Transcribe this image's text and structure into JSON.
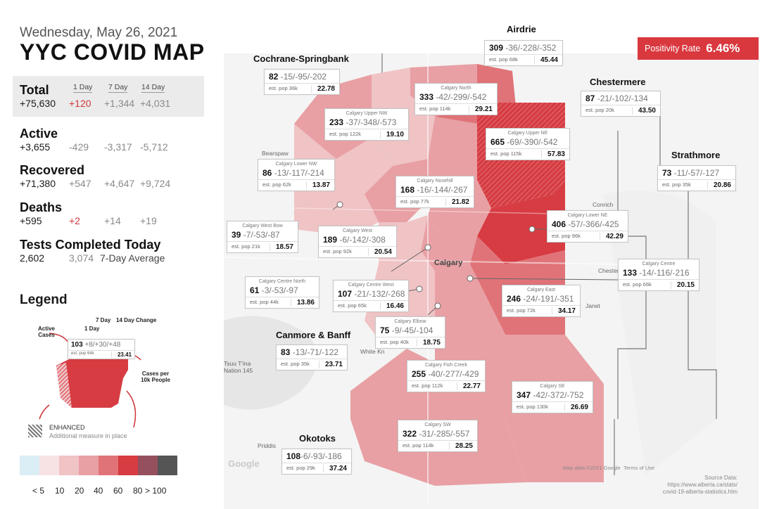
{
  "header": {
    "date": "Wednesday, May 26, 2021",
    "title": "YYC COVID MAP"
  },
  "columns": {
    "one_day": "1 Day",
    "seven_day": "7 Day",
    "fourteen_day": "14 Day"
  },
  "stats": {
    "total": {
      "label": "Total",
      "value": "+75,630",
      "d1": "+120",
      "d7": "+1,344",
      "d14": "+4,031"
    },
    "active": {
      "label": "Active",
      "value": "+3,655",
      "d1": "-429",
      "d7": "-3,317",
      "d14": "-5,712"
    },
    "recovered": {
      "label": "Recovered",
      "value": "+71,380",
      "d1": "+547",
      "d7": "+4,647",
      "d14": "+9,724"
    },
    "deaths": {
      "label": "Deaths",
      "value": "+595",
      "d1": "+2",
      "d7": "+14",
      "d14": "+19"
    },
    "tests": {
      "label": "Tests Completed Today",
      "value": "2,602",
      "avg_value": "3,074",
      "avg_label": "7-Day Average"
    }
  },
  "legend": {
    "title": "Legend",
    "col_7day": "7 Day",
    "col_14day": "14 Day Change",
    "col_1day": "1 Day",
    "active_cases": "Active Cases",
    "cases_per_10k": "Cases per 10k People",
    "example": {
      "active": "103",
      "change": "+8/+30/+48",
      "pop": "est. pop 64k",
      "rate": "23.41"
    },
    "enhanced": "ENHANCED",
    "enhanced_desc": "Additional measure in place",
    "scale_labels": [
      "< 5",
      "10",
      "20",
      "40",
      "60",
      "80",
      "> 100"
    ],
    "scale_colors": [
      "#dbeef6",
      "#f8e3e4",
      "#f0c3c5",
      "#e8a0a4",
      "#e07378",
      "#d63c42",
      "#94515d",
      "#555555"
    ]
  },
  "positivity": {
    "label": "Positivity Rate",
    "value": "6.46%"
  },
  "map": {
    "colors": {
      "water": "#e7eef0",
      "land": "#f2f2f2",
      "road": "#ffffff"
    },
    "place_names": [
      "Bearspaw",
      "Calgary",
      "Chestermere",
      "White Kn",
      "Priddis",
      "Conrich",
      "Janet",
      "Tsuu T'ina Nation 145",
      "Google"
    ],
    "attribution": "Map data ©2021 Google",
    "terms": "Terms of Use",
    "source_title": "Source Data:",
    "source_line1": "https://www.alberta.ca/stats/",
    "source_line2": "covid-19-alberta-statistics.htm"
  },
  "regions": [
    {
      "id": "airdrie",
      "title": "Airdrie",
      "name": "",
      "active": "309",
      "change": "-36/-228/-352",
      "pop": "est. pop 68k",
      "rate": "45.44"
    },
    {
      "id": "cochrane",
      "title": "Cochrane-Springbank",
      "name": "",
      "active": "82",
      "change": "-15/-95/-202",
      "pop": "est. pop 36k",
      "rate": "22.78"
    },
    {
      "id": "chestermere",
      "title": "Chestermere",
      "name": "",
      "active": "87",
      "change": "-21/-102/-134",
      "pop": "est. pop 20k",
      "rate": "43.50"
    },
    {
      "id": "strathmore",
      "title": "Strathmore",
      "name": "",
      "active": "73",
      "change": "-11/-57/-127",
      "pop": "est. pop 35k",
      "rate": "20.86"
    },
    {
      "id": "canmore",
      "title": "Canmore & Banff",
      "name": "",
      "active": "83",
      "change": "-13/-71/-122",
      "pop": "est. pop 35k",
      "rate": "23.71"
    },
    {
      "id": "okotoks",
      "title": "Okotoks",
      "name": "",
      "active": "108",
      "change": "-6/-93/-186",
      "pop": "est. pop 29k",
      "rate": "37.24"
    },
    {
      "id": "north",
      "title": "",
      "name": "Calgary North",
      "active": "333",
      "change": "-42/-299/-542",
      "pop": "est. pop 114k",
      "rate": "29.21"
    },
    {
      "id": "upper-nw",
      "title": "",
      "name": "Calgary Upper NW",
      "active": "233",
      "change": "-37/-348/-573",
      "pop": "est. pop 122k",
      "rate": "19.10"
    },
    {
      "id": "upper-ne",
      "title": "",
      "name": "Calgary Upper NE",
      "active": "665",
      "change": "-69/-390/-542",
      "pop": "est. pop 115k",
      "rate": "57.83"
    },
    {
      "id": "lower-nw",
      "title": "",
      "name": "Calgary Lower NW",
      "active": "86",
      "change": "-13/-117/-214",
      "pop": "est. pop 62k",
      "rate": "13.87"
    },
    {
      "id": "nose-hill",
      "title": "",
      "name": "Calgary Nosehill",
      "active": "168",
      "change": "-16/-144/-267",
      "pop": "est. pop 77k",
      "rate": "21.82"
    },
    {
      "id": "lower-ne",
      "title": "",
      "name": "Calgary Lower NE",
      "active": "406",
      "change": "-57/-366/-425",
      "pop": "est. pop 96k",
      "rate": "42.29"
    },
    {
      "id": "west-bow",
      "title": "",
      "name": "Calgary West Bow",
      "active": "39",
      "change": "-7/-53/-87",
      "pop": "est. pop 21k",
      "rate": "18.57"
    },
    {
      "id": "west",
      "title": "",
      "name": "Calgary West",
      "active": "189",
      "change": "-6/-142/-308",
      "pop": "est. pop 92k",
      "rate": "20.54"
    },
    {
      "id": "centre",
      "title": "",
      "name": "Calgary Centre",
      "active": "133",
      "change": "-14/-116/-216",
      "pop": "est. pop 66k",
      "rate": "20.15"
    },
    {
      "id": "centre-north",
      "title": "",
      "name": "Calgary Centre North",
      "active": "61",
      "change": "-3/-53/-97",
      "pop": "est. pop 44k",
      "rate": "13.86"
    },
    {
      "id": "centre-west",
      "title": "",
      "name": "Calgary Centre West",
      "active": "107",
      "change": "-21/-132/-268",
      "pop": "est. pop 65k",
      "rate": "16.46"
    },
    {
      "id": "east",
      "title": "",
      "name": "Calgary East",
      "active": "246",
      "change": "-24/-191/-351",
      "pop": "est. pop 72k",
      "rate": "34.17"
    },
    {
      "id": "elbow",
      "title": "",
      "name": "Calgary Elbow",
      "active": "75",
      "change": "-9/-45/-104",
      "pop": "est. pop 40k",
      "rate": "18.75"
    },
    {
      "id": "fish-creek",
      "title": "",
      "name": "Calgary Fish Creek",
      "active": "255",
      "change": "-40/-277/-429",
      "pop": "est. pop 112k",
      "rate": "22.77"
    },
    {
      "id": "se",
      "title": "",
      "name": "Calgary SE",
      "active": "347",
      "change": "-42/-372/-752",
      "pop": "est. pop 130k",
      "rate": "26.69"
    },
    {
      "id": "sw",
      "title": "",
      "name": "Calgary SW",
      "active": "322",
      "change": "-31/-285/-557",
      "pop": "est. pop 114k",
      "rate": "28.25"
    }
  ]
}
